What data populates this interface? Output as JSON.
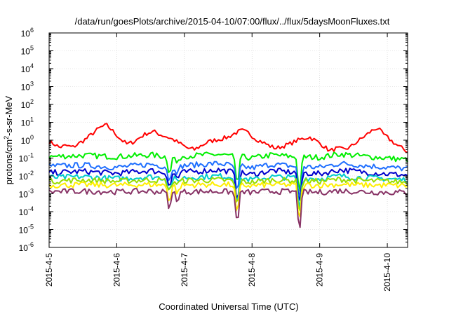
{
  "chart_data": {
    "type": "line",
    "title": "/data/run/goesPlots/archive/2015-04-10/07:00/flux/../flux/5daysMoonFluxes.txt",
    "xlabel": "Coordinated Universal Time (UTC)",
    "ylabel_parts": {
      "before": "protons/cm",
      "sup": "2",
      "after": "-s-sr-MeV"
    },
    "xlim_days": [
      0,
      5.3
    ],
    "ylim": [
      1e-06,
      1000000.0
    ],
    "yscale": "log",
    "y_ticks": [
      {
        "value": 1e-06,
        "base": "10",
        "exp": "-6"
      },
      {
        "value": 1e-05,
        "base": "10",
        "exp": "-5"
      },
      {
        "value": 0.0001,
        "base": "10",
        "exp": "-4"
      },
      {
        "value": 0.001,
        "base": "10",
        "exp": "-3"
      },
      {
        "value": 0.01,
        "base": "10",
        "exp": "-2"
      },
      {
        "value": 0.1,
        "base": "10",
        "exp": "-1"
      },
      {
        "value": 1,
        "base": "10",
        "exp": "0"
      },
      {
        "value": 10,
        "base": "10",
        "exp": "1"
      },
      {
        "value": 100,
        "base": "10",
        "exp": "2"
      },
      {
        "value": 1000,
        "base": "10",
        "exp": "3"
      },
      {
        "value": 10000,
        "base": "10",
        "exp": "4"
      },
      {
        "value": 100000,
        "base": "10",
        "exp": "5"
      },
      {
        "value": 1000000,
        "base": "10",
        "exp": "6"
      }
    ],
    "x_ticks": [
      {
        "value": 0,
        "label": "2015-4-5"
      },
      {
        "value": 1,
        "label": "2015-4-6"
      },
      {
        "value": 2,
        "label": "2015-4-7"
      },
      {
        "value": 3,
        "label": "2015-4-8"
      },
      {
        "value": 4,
        "label": "2015-4-9"
      },
      {
        "value": 5,
        "label": "2015-4-10"
      }
    ],
    "grid": true,
    "series": [
      {
        "color": "#ff0000",
        "x": [
          0,
          0.08,
          0.15,
          0.25,
          0.35,
          0.45,
          0.55,
          0.65,
          0.75,
          0.85,
          0.95,
          1.05,
          1.15,
          1.25,
          1.35,
          1.45,
          1.55,
          1.65,
          1.75,
          1.85,
          1.95,
          2.05,
          2.15,
          2.25,
          2.35,
          2.45,
          2.55,
          2.65,
          2.75,
          2.85,
          2.95,
          3.05,
          3.15,
          3.25,
          3.35,
          3.45,
          3.55,
          3.65,
          3.75,
          3.85,
          3.95,
          4.05,
          4.15,
          4.25,
          4.35,
          4.45,
          4.55,
          4.65,
          4.75,
          4.85,
          4.95,
          5.05,
          5.15,
          5.25,
          5.3
        ],
        "y": [
          0.8,
          0.6,
          0.4,
          0.5,
          0.4,
          0.7,
          1.2,
          2.5,
          5,
          7,
          3,
          1.2,
          0.6,
          0.8,
          1.5,
          2.5,
          3,
          2,
          1.5,
          1,
          0.6,
          0.35,
          0.3,
          0.5,
          0.8,
          1,
          1.2,
          1.5,
          2.5,
          3.5,
          2.5,
          1.2,
          0.8,
          0.5,
          0.35,
          0.45,
          0.6,
          0.9,
          1.2,
          1.5,
          0.9,
          0.5,
          0.25,
          0.35,
          0.3,
          0.4,
          0.8,
          1.5,
          3,
          5,
          2,
          1,
          0.5,
          0.3,
          0.22
        ]
      },
      {
        "color": "#00ee00",
        "x": [
          0,
          0.5,
          1,
          1.5,
          1.8,
          2,
          2.5,
          2.8,
          3,
          3.3,
          3.6,
          4,
          4.3,
          4.6,
          5,
          5.3
        ],
        "y": [
          0.12,
          0.14,
          0.12,
          0.15,
          0.11,
          0.13,
          0.16,
          0.12,
          0.1,
          0.15,
          0.12,
          0.11,
          0.17,
          0.13,
          0.1,
          0.08
        ]
      },
      {
        "color": "#1f6fff",
        "x": [
          0,
          0.5,
          1,
          1.5,
          1.8,
          2,
          2.5,
          2.8,
          3,
          3.3,
          3.6,
          4,
          4.3,
          4.6,
          5,
          5.3
        ],
        "y": [
          0.035,
          0.04,
          0.03,
          0.045,
          0.03,
          0.038,
          0.05,
          0.035,
          0.028,
          0.045,
          0.035,
          0.03,
          0.05,
          0.04,
          0.03,
          0.025
        ]
      },
      {
        "color": "#0000cc",
        "x": [
          0,
          0.5,
          1,
          1.5,
          1.8,
          2,
          2.5,
          2.8,
          3,
          3.3,
          3.6,
          4,
          4.3,
          4.6,
          5,
          5.3
        ],
        "y": [
          0.015,
          0.018,
          0.014,
          0.02,
          0.013,
          0.016,
          0.022,
          0.015,
          0.012,
          0.02,
          0.016,
          0.013,
          0.022,
          0.017,
          0.013,
          0.011
        ]
      },
      {
        "color": "#00cccc",
        "x": [
          0,
          0.5,
          1,
          1.5,
          1.8,
          2,
          2.5,
          2.8,
          3,
          3.3,
          3.6,
          4,
          4.3,
          4.6,
          5,
          5.3
        ],
        "y": [
          0.008,
          0.009,
          0.007,
          0.009,
          0.007,
          0.008,
          0.01,
          0.008,
          0.006,
          0.009,
          0.008,
          0.007,
          0.01,
          0.008,
          0.007,
          0.006
        ]
      },
      {
        "color": "#99dd00",
        "x": [
          0,
          0.5,
          1,
          1.5,
          1.8,
          2,
          2.5,
          2.8,
          3,
          3.3,
          3.6,
          4,
          4.3,
          4.6,
          5,
          5.3
        ],
        "y": [
          0.005,
          0.006,
          0.005,
          0.006,
          0.005,
          0.0055,
          0.006,
          0.005,
          0.0045,
          0.006,
          0.0055,
          0.005,
          0.0065,
          0.0055,
          0.005,
          0.0045
        ]
      },
      {
        "color": "#ffee00",
        "x": [
          0,
          0.5,
          1,
          1.5,
          1.8,
          2,
          2.5,
          2.8,
          3,
          3.3,
          3.6,
          4,
          4.3,
          4.6,
          5,
          5.3
        ],
        "y": [
          0.003,
          0.0032,
          0.003,
          0.0033,
          0.003,
          0.0031,
          0.0034,
          0.003,
          0.0028,
          0.0033,
          0.0031,
          0.003,
          0.0034,
          0.0031,
          0.003,
          0.0028
        ]
      },
      {
        "color": "#883366",
        "x": [
          0,
          0.5,
          1,
          1.5,
          1.8,
          2,
          2.5,
          2.8,
          3,
          3.3,
          3.6,
          4,
          4.3,
          4.6,
          5,
          5.3
        ],
        "y": [
          0.0013,
          0.0014,
          0.0013,
          0.0014,
          0.0012,
          0.0013,
          0.0014,
          0.0012,
          0.0012,
          0.0014,
          0.0013,
          0.0012,
          0.0015,
          0.0013,
          0.0012,
          0.0012
        ]
      }
    ],
    "dips": [
      {
        "x": 1.78,
        "depth_factor": 0.08
      },
      {
        "x": 1.9,
        "depth_factor": 0.25
      },
      {
        "x": 2.78,
        "depth_factor": 0.01
      },
      {
        "x": 3.7,
        "depth_factor": 0.004
      }
    ]
  }
}
